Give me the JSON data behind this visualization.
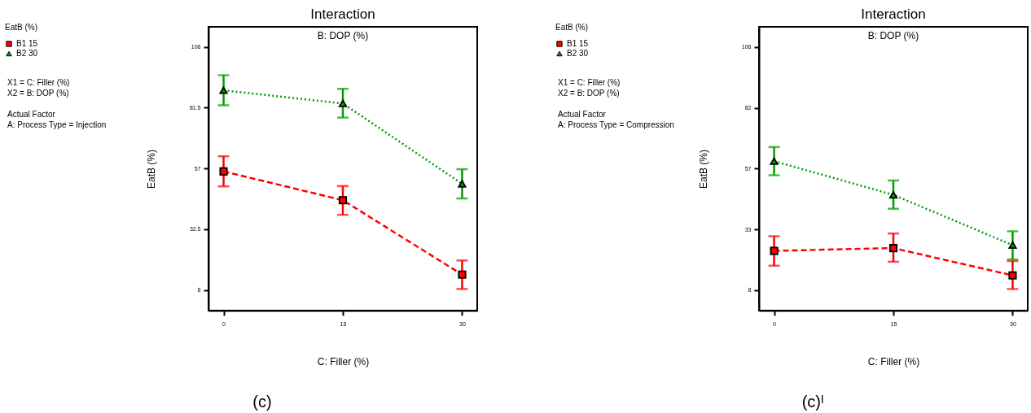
{
  "chart_data": [
    {
      "type": "line",
      "title": "Interaction",
      "subtitle": "B: DOP (%)",
      "xlabel": "C: Filler (%)",
      "ylabel": "EatB (%)",
      "legend_title": "EatB (%)",
      "legend": "left",
      "annotations": [
        "X1 = C: Filler (%)",
        "X2 = B: DOP (%)",
        "Actual Factor",
        "A: Process Type = Injection",
        "(c)"
      ],
      "x": [
        0,
        15,
        30
      ],
      "xlim": [
        -1.9,
        31.9
      ],
      "xticks": [
        0,
        15,
        30
      ],
      "ylim": [
        -0.3,
        114.1
      ],
      "yticks": [
        8,
        32.5,
        57,
        81.5,
        106
      ],
      "series": [
        {
          "name": "B1 15",
          "color": "#ff0000",
          "marker": "square",
          "line_style": "dashed",
          "values": [
            55.8,
            44.2,
            14.2
          ],
          "errors": [
            [
              49.8,
              61.9
            ],
            [
              38.3,
              49.9
            ],
            [
              8.4,
              19.9
            ]
          ]
        },
        {
          "name": "B2 30",
          "color": "#009f00",
          "marker": "triangle",
          "line_style": "dotted",
          "values": [
            88.5,
            83.2,
            50.8
          ],
          "errors": [
            [
              82.5,
              94.6
            ],
            [
              77.5,
              89.1
            ],
            [
              44.9,
              56.7
            ]
          ]
        }
      ]
    },
    {
      "type": "line",
      "title": "Interaction",
      "subtitle": "B: DOP (%)",
      "xlabel": "C: Filler (%)",
      "ylabel": "EatB (%)",
      "legend_title": "EatB (%)",
      "legend": "left",
      "annotations": [
        "X1 = C: Filler (%)",
        "X2 = B: DOP (%)",
        "Actual Factor",
        "A: Process Type = Compression",
        "(c)ᴵ"
      ],
      "x": [
        0,
        15,
        30
      ],
      "xlim": [
        -1.9,
        31.9
      ],
      "xticks": [
        0,
        15,
        30
      ],
      "ylim": [
        -0.3,
        114.2
      ],
      "yticks": [
        8,
        {
          "value": 32.5,
          "label": "33"
        },
        57,
        {
          "value": 81.5,
          "label": "82"
        },
        106
      ],
      "series": [
        {
          "name": "B1 15",
          "color": "#ff0000",
          "marker": "square",
          "line_style": "dashed",
          "values": [
            23.8,
            24.9,
            13.9
          ],
          "errors": [
            [
              17.8,
              29.7
            ],
            [
              19.4,
              30.8
            ],
            [
              8.4,
              19.7
            ]
          ]
        },
        {
          "name": "B2 30",
          "color": "#009f00",
          "marker": "triangle",
          "line_style": "dotted",
          "values": [
            60.0,
            46.4,
            26.1
          ],
          "errors": [
            [
              54.3,
              65.7
            ],
            [
              40.8,
              52.2
            ],
            [
              20.3,
              31.7
            ]
          ]
        }
      ]
    }
  ]
}
